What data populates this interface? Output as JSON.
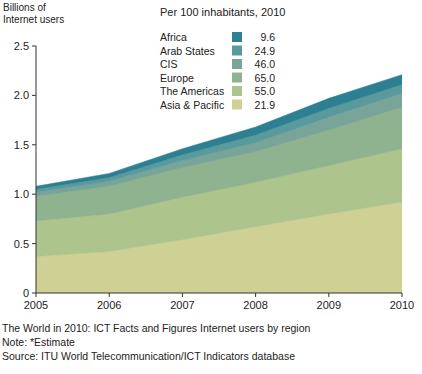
{
  "chart_data": {
    "type": "area",
    "stacked": true,
    "grid": false,
    "legend": "top",
    "legend_title": "Per 100 inhabitants, 2010",
    "ylabel": [
      "Billions of",
      "Internet users"
    ],
    "notes": [
      "The World in 2010: ICT Facts and Figures Internet users by region",
      "Note: *Estimate",
      "Source: ITU World Telecommunication/ICT Indicators database"
    ],
    "x": [
      2005,
      2006,
      2007,
      2008,
      2009,
      2010
    ],
    "xlim": [
      2005,
      2010
    ],
    "xticks": [
      2005,
      2006,
      2007,
      2008,
      2009,
      2010
    ],
    "ylim": [
      0,
      2.5
    ],
    "yticks": [
      0,
      0.5,
      {
        "value": 1,
        "label": "1.0"
      },
      1.5,
      {
        "value": 2,
        "label": "2.0"
      },
      2.5
    ],
    "series": [
      {
        "name": "Asia & Pacific",
        "color": "#cfd194",
        "per_100": 21.9,
        "per_100_label": "21.9",
        "values": [
          0.37,
          0.42,
          0.54,
          0.67,
          0.8,
          0.92
        ]
      },
      {
        "name": "The Americas",
        "color": "#aec48d",
        "per_100": 55.0,
        "per_100_label": "55.0",
        "values": [
          0.36,
          0.38,
          0.43,
          0.45,
          0.49,
          0.54
        ]
      },
      {
        "name": "Europe",
        "color": "#8fb38f",
        "per_100": 65.0,
        "per_100_label": "65.0",
        "values": [
          0.25,
          0.28,
          0.3,
          0.31,
          0.36,
          0.42
        ]
      },
      {
        "name": "CIS",
        "color": "#78a598",
        "per_100": 46.0,
        "per_100_label": "46.0",
        "values": [
          0.04,
          0.05,
          0.07,
          0.09,
          0.13,
          0.14
        ]
      },
      {
        "name": "Arab States",
        "color": "#5a9a9c",
        "per_100": 24.9,
        "per_100_label": "24.9",
        "values": [
          0.03,
          0.04,
          0.06,
          0.08,
          0.09,
          0.09
        ]
      },
      {
        "name": "Africa",
        "color": "#2d8092",
        "per_100": 9.6,
        "per_100_label": "9.6",
        "values": [
          0.03,
          0.04,
          0.06,
          0.08,
          0.1,
          0.1
        ]
      }
    ]
  }
}
